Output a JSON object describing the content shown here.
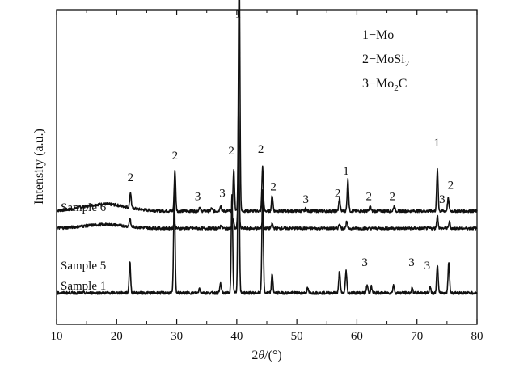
{
  "chart_data": {
    "type": "line",
    "xlabel_parts": [
      "2",
      "θ",
      "/(°)"
    ],
    "ylabel": "Intensity (a.u.)",
    "xlim": [
      10,
      80
    ],
    "ylim": [
      0,
      100
    ],
    "x_ticks": [
      "10",
      "20",
      "30",
      "40",
      "50",
      "60",
      "70",
      "80"
    ],
    "legend": [
      {
        "number": "1",
        "dash": "−",
        "formula": "Mo",
        "sub": "",
        "tail": ""
      },
      {
        "number": "2",
        "dash": "−",
        "formula": "MoSi",
        "sub": "2",
        "tail": ""
      },
      {
        "number": "3",
        "dash": "−",
        "formula": "Mo",
        "sub": "2",
        "tail": "C"
      }
    ],
    "series": [
      {
        "name": "Sample 6",
        "baseline": 36,
        "hump": {
          "center": 18,
          "width": 3.5,
          "height": 2.2
        },
        "peaks": [
          [
            22.3,
            5
          ],
          [
            29.7,
            13
          ],
          [
            33.8,
            1.2
          ],
          [
            35.8,
            0.8
          ],
          [
            37.3,
            1.8
          ],
          [
            39.5,
            13
          ],
          [
            40.4,
            81
          ],
          [
            44.3,
            14
          ],
          [
            45.9,
            5
          ],
          [
            51.5,
            0.8
          ],
          [
            57.1,
            4
          ],
          [
            58.5,
            10
          ],
          [
            62.2,
            1.5
          ],
          [
            66.2,
            1.5
          ],
          [
            73.4,
            13
          ],
          [
            75.2,
            4
          ]
        ]
      },
      {
        "name": "Sample 5",
        "baseline": 30.5,
        "hump": {
          "center": 18,
          "width": 3.5,
          "height": 1.2
        },
        "peaks": [
          [
            22.2,
            2.5
          ],
          [
            29.6,
            2
          ],
          [
            37.4,
            1
          ],
          [
            39.4,
            3
          ],
          [
            40.3,
            20
          ],
          [
            44.3,
            2.5
          ],
          [
            45.9,
            1.5
          ],
          [
            57.1,
            1.5
          ],
          [
            58.3,
            2
          ],
          [
            73.4,
            4
          ],
          [
            75.4,
            2
          ]
        ]
      },
      {
        "name": "Sample 1",
        "baseline": 10,
        "hump": {
          "center": 18,
          "width": 3.5,
          "height": 0
        },
        "peaks": [
          [
            22.2,
            10
          ],
          [
            29.6,
            33
          ],
          [
            33.8,
            1.5
          ],
          [
            37.3,
            3
          ],
          [
            39.2,
            31
          ],
          [
            40.3,
            60
          ],
          [
            44.3,
            33
          ],
          [
            45.9,
            6
          ],
          [
            51.8,
            1.5
          ],
          [
            57.1,
            7
          ],
          [
            58.2,
            7
          ],
          [
            61.7,
            2.5
          ],
          [
            62.4,
            2
          ],
          [
            66.1,
            2.5
          ],
          [
            69.2,
            1.5
          ],
          [
            72.2,
            2
          ],
          [
            73.4,
            9
          ],
          [
            75.3,
            10
          ]
        ]
      }
    ],
    "peak_labels": [
      {
        "text": "1",
        "x": 40.2,
        "y": 97.5
      },
      {
        "text": "2",
        "x": 22.3,
        "y": 45.5
      },
      {
        "text": "2",
        "x": 29.7,
        "y": 52.5
      },
      {
        "text": "3",
        "x": 33.5,
        "y": 39.5
      },
      {
        "text": "3",
        "x": 37.6,
        "y": 40.5
      },
      {
        "text": "2",
        "x": 39.1,
        "y": 54.0
      },
      {
        "text": "2",
        "x": 44.0,
        "y": 54.5
      },
      {
        "text": "2",
        "x": 46.1,
        "y": 42.5
      },
      {
        "text": "3",
        "x": 51.5,
        "y": 38.5
      },
      {
        "text": "2",
        "x": 56.8,
        "y": 40.5
      },
      {
        "text": "1",
        "x": 58.2,
        "y": 47.5
      },
      {
        "text": "2",
        "x": 62.0,
        "y": 39.5
      },
      {
        "text": "2",
        "x": 65.9,
        "y": 39.5
      },
      {
        "text": "1",
        "x": 73.3,
        "y": 56.5
      },
      {
        "text": "3",
        "x": 74.2,
        "y": 38.5
      },
      {
        "text": "2",
        "x": 75.6,
        "y": 43.0
      },
      {
        "text": "3",
        "x": 61.3,
        "y": 18.5
      },
      {
        "text": "3",
        "x": 69.1,
        "y": 18.5
      },
      {
        "text": "3",
        "x": 71.7,
        "y": 17.5
      }
    ]
  }
}
